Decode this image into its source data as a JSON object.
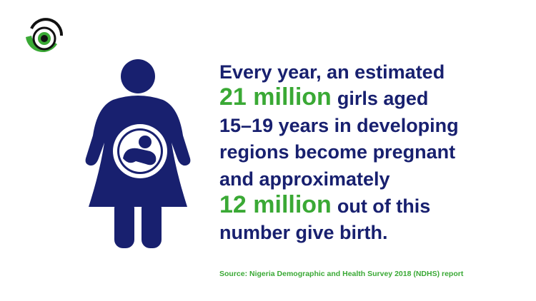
{
  "headline": {
    "lines": [
      [
        {
          "text": "Every year, an estimated",
          "emphasis": false
        }
      ],
      [
        {
          "text": "21 million",
          "emphasis": true
        },
        {
          "text": "girls aged",
          "emphasis": false
        }
      ],
      [
        {
          "text": "15–19 years in developing",
          "emphasis": false
        }
      ],
      [
        {
          "text": "regions become pregnant",
          "emphasis": false
        }
      ],
      [
        {
          "text": "and approximately",
          "emphasis": false
        }
      ],
      [
        {
          "text": "12 million",
          "emphasis": true
        },
        {
          "text": "out of this",
          "emphasis": false
        }
      ],
      [
        {
          "text": "number give birth.",
          "emphasis": false
        }
      ]
    ]
  },
  "source": "Source: Nigeria Demographic and Health Survey 2018 (NDHS) report"
}
